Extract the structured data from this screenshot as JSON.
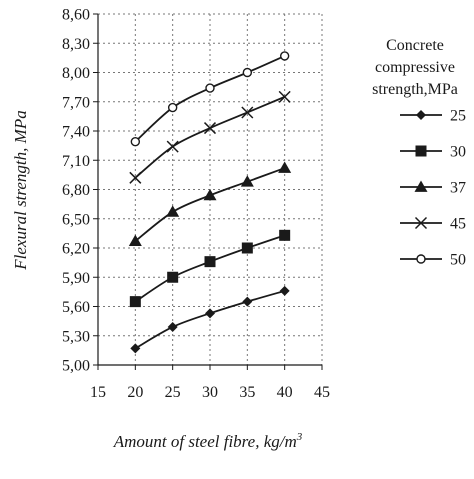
{
  "chart_data": {
    "type": "line",
    "title": "",
    "xlabel": "Amount of steel fibre, kg/m",
    "xlabel_superscript": "3",
    "ylabel": "Flexural strength, MPa",
    "xlim": [
      15,
      45
    ],
    "ylim": [
      5.0,
      8.6
    ],
    "x_ticks": [
      "15",
      "20",
      "25",
      "30",
      "35",
      "40",
      "45"
    ],
    "y_ticks": [
      "5,00",
      "5,30",
      "5,60",
      "5,90",
      "6,20",
      "6,50",
      "6,80",
      "7,10",
      "7,40",
      "7,70",
      "8,00",
      "8,30",
      "8,60"
    ],
    "grid": true,
    "legend_placement": "right",
    "legend_title": [
      "Concrete",
      "compressive",
      "strength,MPa"
    ],
    "x": [
      20,
      25,
      30,
      35,
      40
    ],
    "series": [
      {
        "name": "25",
        "marker": "diamond",
        "values": [
          5.17,
          5.39,
          5.53,
          5.65,
          5.76
        ]
      },
      {
        "name": "30",
        "marker": "square",
        "values": [
          5.65,
          5.9,
          6.06,
          6.2,
          6.33
        ]
      },
      {
        "name": "37",
        "marker": "triangle",
        "values": [
          6.27,
          6.57,
          6.74,
          6.88,
          7.02
        ]
      },
      {
        "name": "45",
        "marker": "x",
        "values": [
          6.92,
          7.24,
          7.43,
          7.59,
          7.75
        ]
      },
      {
        "name": "50",
        "marker": "circle",
        "values": [
          7.29,
          7.64,
          7.84,
          8.0,
          8.17
        ]
      }
    ],
    "colors": {
      "line": "#1a1a1a",
      "grid": "#777777",
      "axis": "#1a1a1a"
    }
  }
}
